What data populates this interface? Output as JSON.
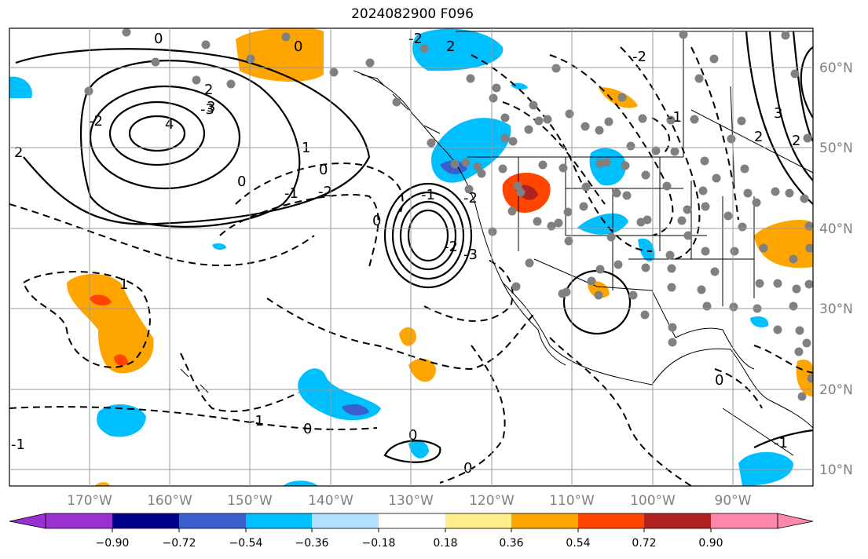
{
  "title": "2024082900 F096",
  "map": {
    "lon_labels": [
      "170°W",
      "160°W",
      "150°W",
      "140°W",
      "130°W",
      "120°W",
      "110°W",
      "100°W",
      "90°W"
    ],
    "lat_labels": [
      "60°N",
      "50°N",
      "40°N",
      "30°N",
      "20°N",
      "10°N"
    ],
    "contour_labels": [
      "0",
      "0",
      "-2",
      "2",
      "-3",
      "-2",
      "2",
      "4",
      "3",
      "1",
      "2",
      "-1",
      "-2",
      "0",
      "0",
      "0",
      "-1",
      "-2",
      "-2",
      "-3",
      "1",
      "-1",
      "-2",
      "0",
      "-1",
      "0",
      "0",
      "0",
      "2",
      "3",
      "2",
      "-1",
      "-1"
    ],
    "station_dot_color": "#808080",
    "contour_color": "#000000"
  },
  "colorbar": {
    "tick_labels": [
      "−0.90",
      "−0.72",
      "−0.54",
      "−0.36",
      "−0.18",
      "0.18",
      "0.36",
      "0.54",
      "0.72",
      "0.90"
    ],
    "colors": [
      "#9b30d0",
      "#00008b",
      "#3a5fcd",
      "#00bfff",
      "#b0e0ff",
      "#ffffff",
      "#ffec8b",
      "#ffa500",
      "#ff4500",
      "#b22222",
      "#ff88aa"
    ]
  }
}
